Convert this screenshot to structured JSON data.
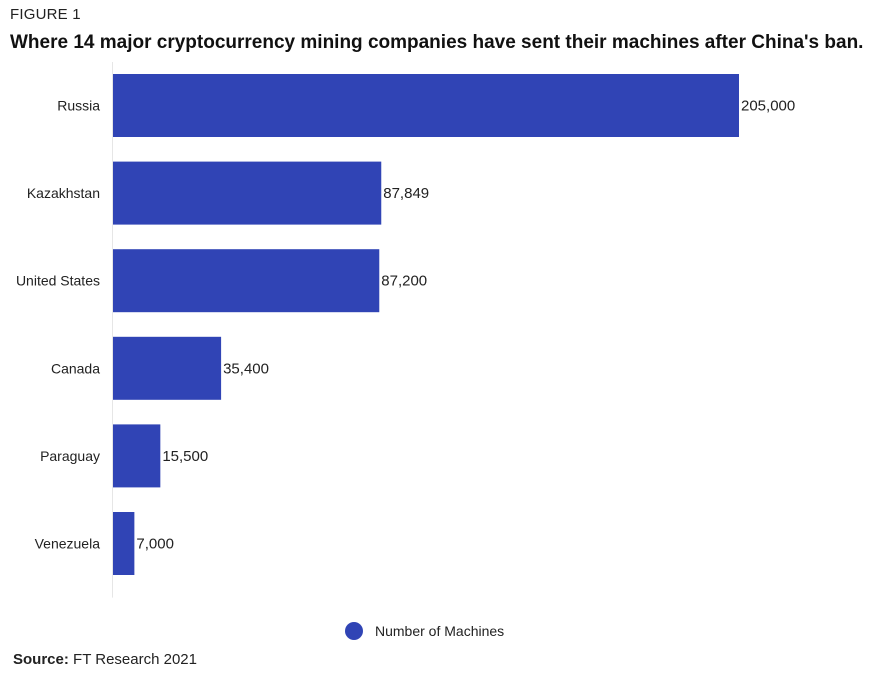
{
  "figure_label": "FIGURE 1",
  "title": "Where 14 major cryptocurrency mining companies have sent their machines after China's ban.",
  "legend": {
    "label": "Number of Machines",
    "color": "#3044b5"
  },
  "source": {
    "label": "Source:",
    "text": "FT Research 2021"
  },
  "chart_data": {
    "type": "bar",
    "orientation": "horizontal",
    "categories": [
      "Russia",
      "Kazakhstan",
      "United States",
      "Canada",
      "Paraguay",
      "Venezuela"
    ],
    "series": [
      {
        "name": "Number of Machines",
        "values": [
          205000,
          87849,
          87200,
          35400,
          15500,
          7000
        ],
        "value_labels": [
          "205,000",
          "87,849",
          "87,200",
          "35,400",
          "15,500",
          "7,000"
        ],
        "color": "#3044b5"
      }
    ],
    "xlim": [
      0,
      205000
    ],
    "grid": false,
    "legend_position": "bottom-center"
  }
}
